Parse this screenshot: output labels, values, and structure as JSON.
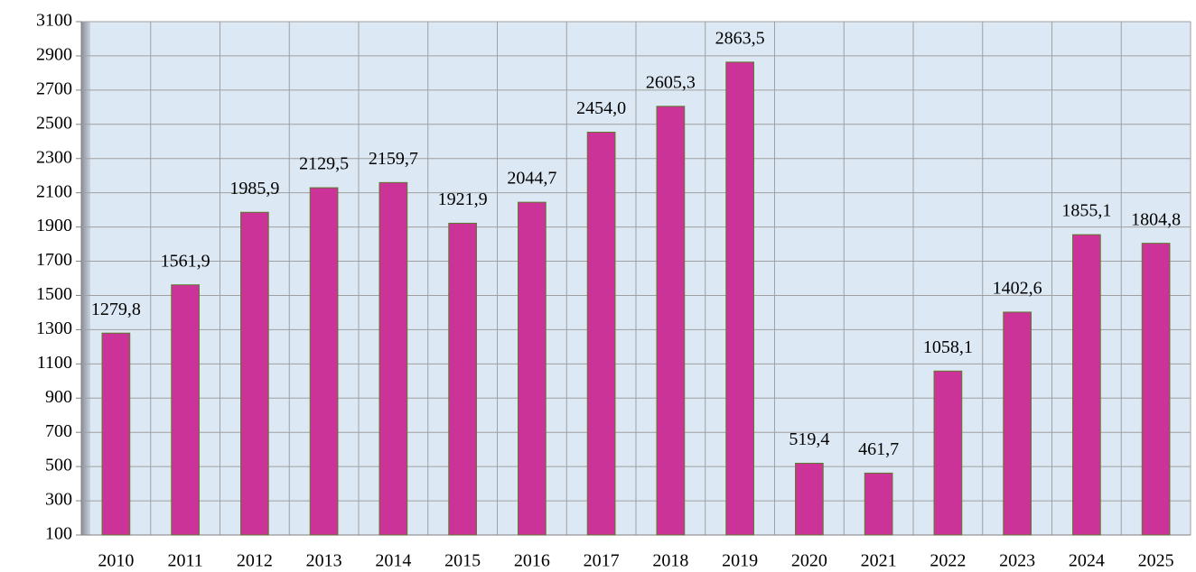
{
  "chart_data": {
    "type": "bar",
    "categories": [
      "2010",
      "2011",
      "2012",
      "2013",
      "2014",
      "2015",
      "2016",
      "2017",
      "2018",
      "2019",
      "2020",
      "2021",
      "2022",
      "2023",
      "2024",
      "2025"
    ],
    "values": [
      1279.8,
      1561.9,
      1985.9,
      2129.5,
      2159.7,
      1921.9,
      2044.7,
      2454.0,
      2605.3,
      2863.5,
      519.4,
      461.7,
      1058.1,
      1402.6,
      1855.1,
      1804.8
    ],
    "value_labels": [
      "1279,8",
      "1561,9",
      "1985,9",
      "2129,5",
      "2159,7",
      "1921,9",
      "2044,7",
      "2454,0",
      "2605,3",
      "2863,5",
      "519,4",
      "461,7",
      "1058,1",
      "1402,6",
      "1855,1",
      "1804,8"
    ],
    "color": "#cc3399",
    "ylim": [
      100,
      3100
    ],
    "yticks": [
      100,
      300,
      500,
      700,
      900,
      1100,
      1300,
      1500,
      1700,
      1900,
      2100,
      2300,
      2500,
      2700,
      2900,
      3100
    ],
    "grid": true
  }
}
